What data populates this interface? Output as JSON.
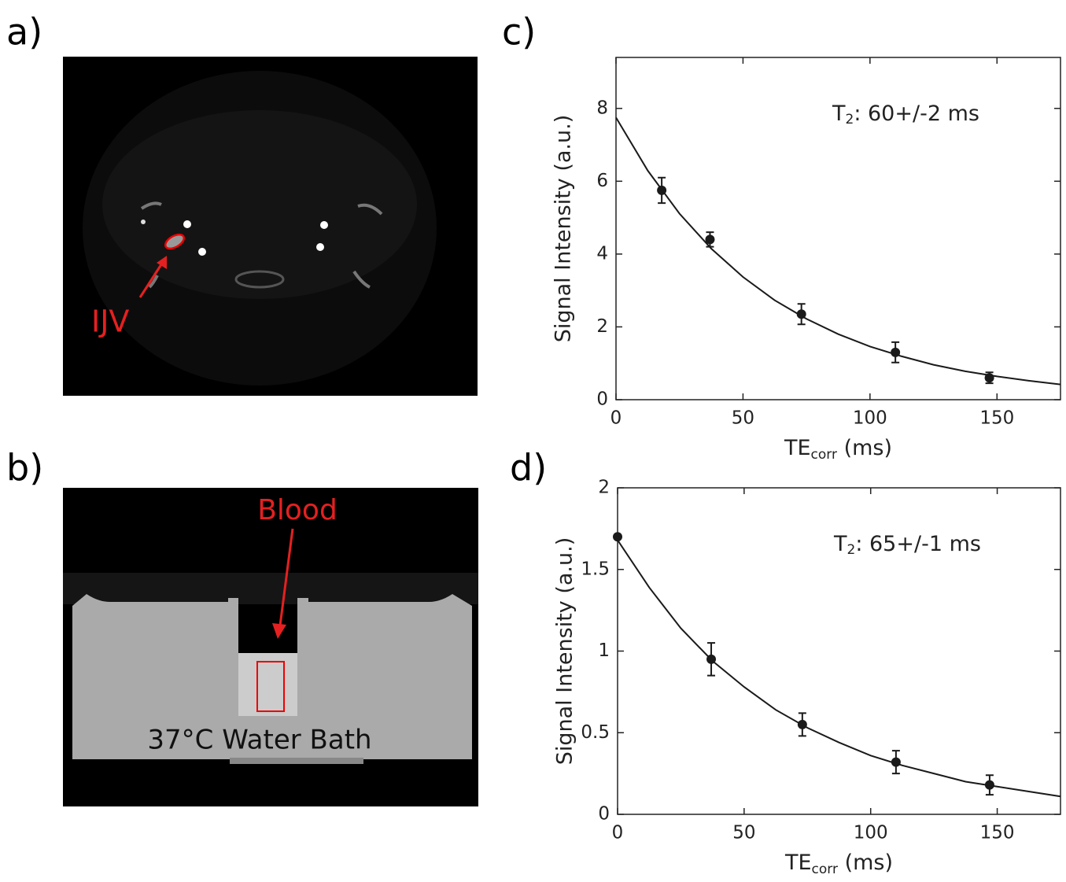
{
  "panels": {
    "a": {
      "label": "a)",
      "annotation": "IJV"
    },
    "b": {
      "label": "b)",
      "annotation": "Blood",
      "caption": "37°C Water Bath"
    }
  },
  "chart_data": [
    {
      "type": "scatter",
      "label": "c)",
      "xlabel": [
        "TE",
        "corr",
        "  (ms)"
      ],
      "ylabel": "Signal Intensity (a.u.)",
      "annotation": [
        "T",
        "2",
        ": 60+/-2 ms"
      ],
      "xlim": [
        0,
        175
      ],
      "ylim": [
        0,
        9.4
      ],
      "xticks": [
        0,
        50,
        100,
        150
      ],
      "yticks": [
        0,
        2,
        4,
        6,
        8
      ],
      "color": "#1a1a1a",
      "x": [
        18,
        37,
        73,
        110,
        147
      ],
      "values": [
        5.75,
        4.4,
        2.35,
        1.3,
        0.6
      ],
      "errors": [
        0.35,
        0.2,
        0.28,
        0.28,
        0.15
      ],
      "fit": {
        "x": [
          0,
          12.5,
          25,
          37.5,
          50,
          62.5,
          75,
          87.5,
          100,
          112.5,
          125,
          137.5,
          150,
          162.5,
          175
        ],
        "values": [
          7.75,
          6.29,
          5.11,
          4.15,
          3.37,
          2.73,
          2.22,
          1.8,
          1.46,
          1.19,
          0.96,
          0.78,
          0.64,
          0.52,
          0.42
        ]
      }
    },
    {
      "type": "scatter",
      "label": "d)",
      "xlabel": [
        "TE",
        "corr",
        "  (ms)"
      ],
      "ylabel": "Signal Intensity (a.u.)",
      "annotation": [
        "T",
        "2",
        ": 65+/-1 ms"
      ],
      "xlim": [
        0,
        175
      ],
      "ylim": [
        0,
        2
      ],
      "xticks": [
        0,
        50,
        100,
        150
      ],
      "yticks": [
        0,
        0.5,
        1,
        1.5,
        2
      ],
      "color": "#1a1a1a",
      "x": [
        0,
        37,
        73,
        110,
        147
      ],
      "values": [
        1.7,
        0.95,
        0.55,
        0.32,
        0.18
      ],
      "errors": [
        0,
        0.1,
        0.07,
        0.07,
        0.06
      ],
      "fit": {
        "x": [
          0,
          12.5,
          25,
          37.5,
          50,
          62.5,
          75,
          87.5,
          100,
          112.5,
          125,
          137.5,
          150,
          162.5,
          175
        ],
        "values": [
          1.68,
          1.39,
          1.14,
          0.94,
          0.78,
          0.64,
          0.53,
          0.44,
          0.36,
          0.3,
          0.25,
          0.2,
          0.17,
          0.14,
          0.11
        ]
      }
    }
  ]
}
